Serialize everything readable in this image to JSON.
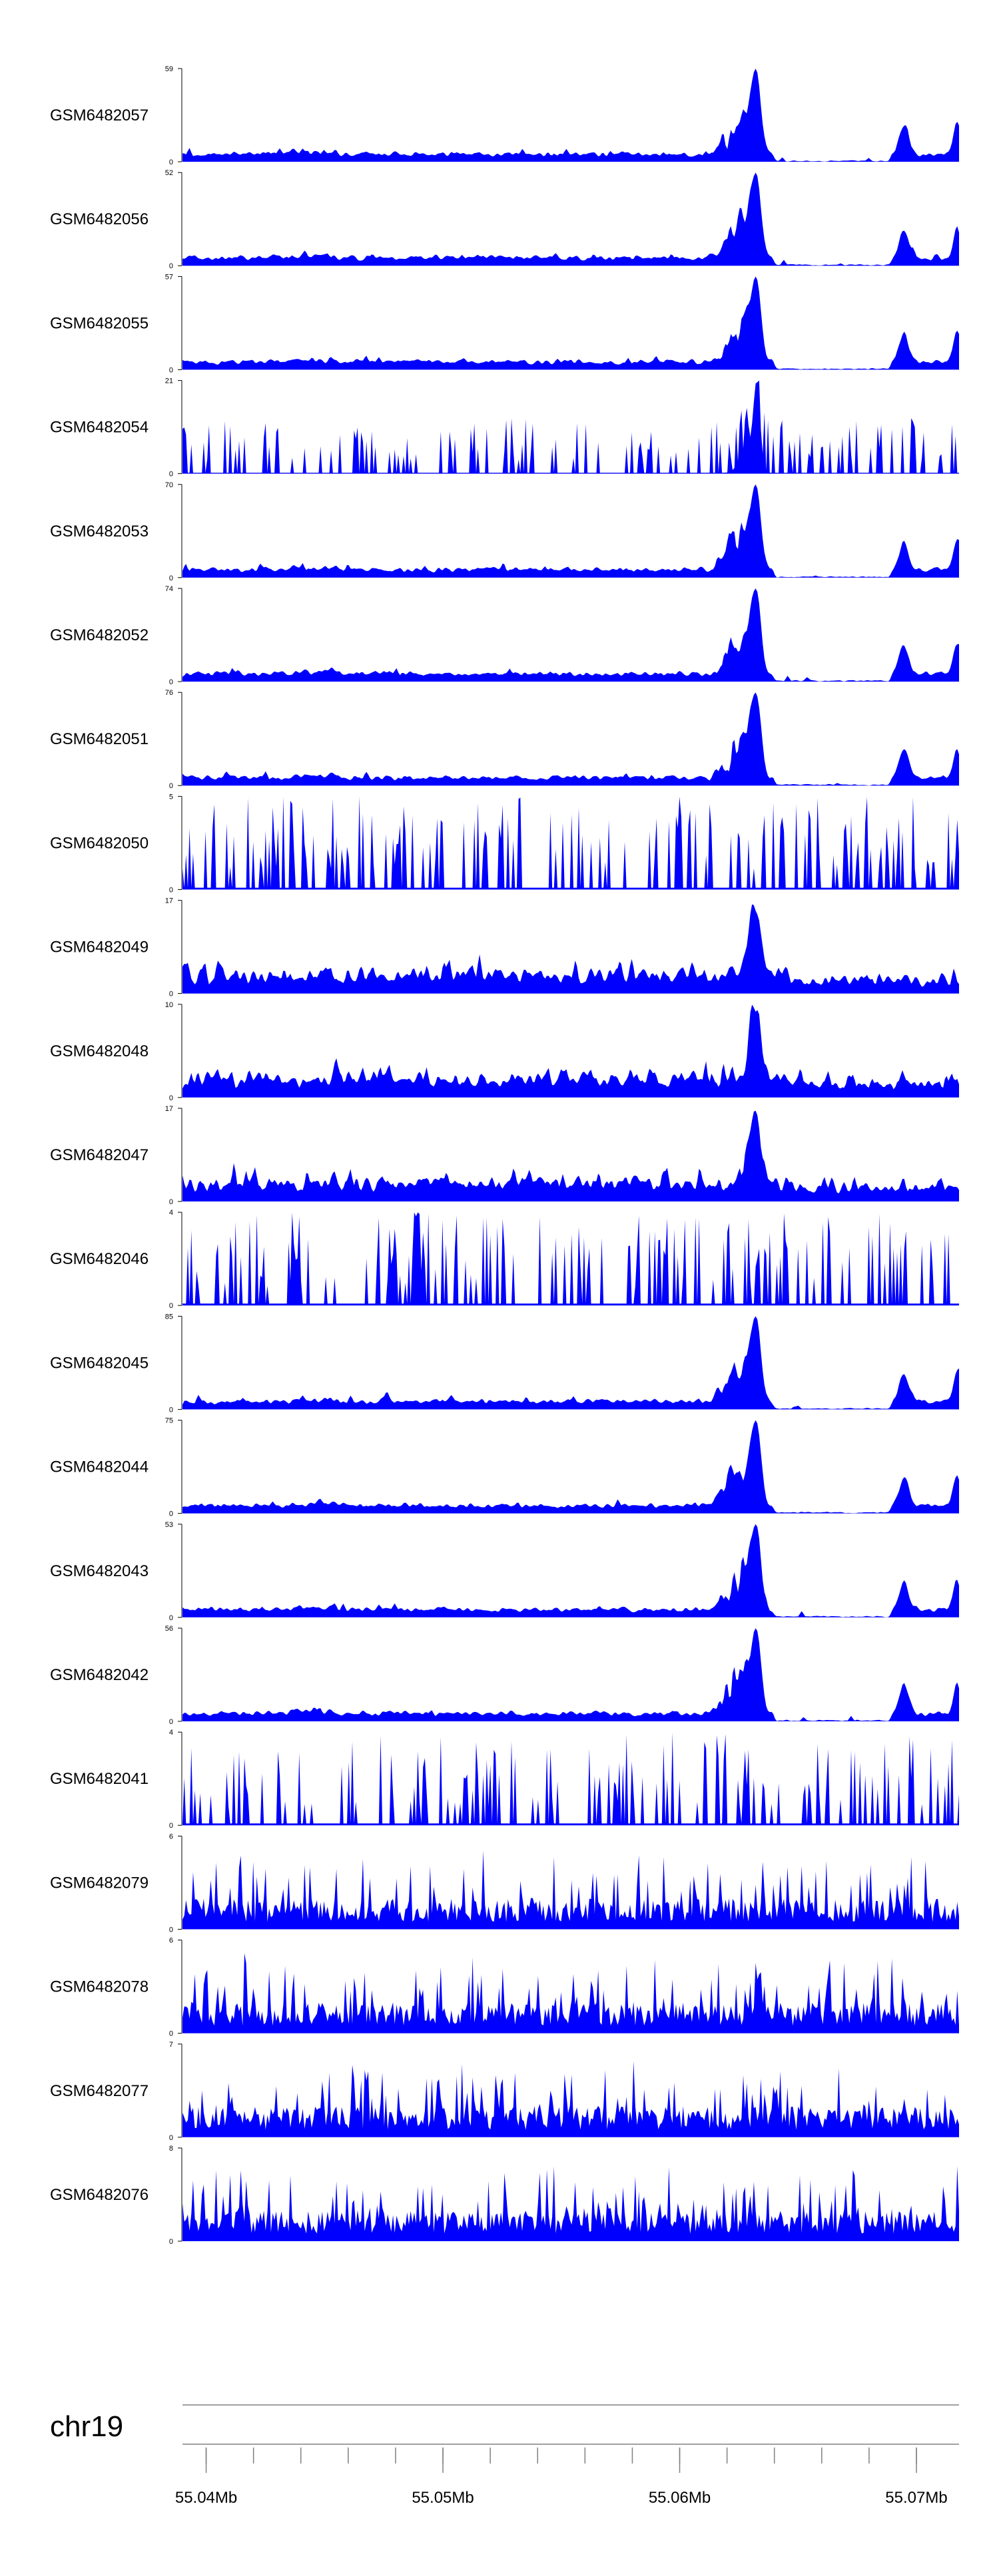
{
  "chart_data": {
    "type": "area",
    "fill_color": "#0000ff",
    "axis_color": "#000000",
    "chromosome": "chr19",
    "x_range_mb": [
      55.039,
      55.0718
    ],
    "x_ticks_major": [
      55.04,
      55.05,
      55.06,
      55.07
    ],
    "x_tick_labels": [
      "55.04Mb",
      "55.05Mb",
      "55.06Mb",
      "55.07Mb"
    ],
    "x_minor_step_mb": 0.002,
    "tracks": [
      {
        "label": "GSM6482057",
        "ymax": 59,
        "ymax_label": "59",
        "ymin_label": "0",
        "profile": "peaked"
      },
      {
        "label": "GSM6482056",
        "ymax": 52,
        "ymax_label": "52",
        "ymin_label": "0",
        "profile": "peaked"
      },
      {
        "label": "GSM6482055",
        "ymax": 57,
        "ymax_label": "57",
        "ymin_label": "0",
        "profile": "peaked"
      },
      {
        "label": "GSM6482054",
        "ymax": 21,
        "ymax_label": "21",
        "ymin_label": "0",
        "profile": "sparse"
      },
      {
        "label": "GSM6482053",
        "ymax": 70,
        "ymax_label": "70",
        "ymin_label": "0",
        "profile": "peaked"
      },
      {
        "label": "GSM6482052",
        "ymax": 74,
        "ymax_label": "74",
        "ymin_label": "0",
        "profile": "peaked"
      },
      {
        "label": "GSM6482051",
        "ymax": 76,
        "ymax_label": "76",
        "ymin_label": "0",
        "profile": "peaked"
      },
      {
        "label": "GSM6482050",
        "ymax": 5,
        "ymax_label": "5",
        "ymin_label": "0",
        "profile": "noisy"
      },
      {
        "label": "GSM6482049",
        "ymax": 17,
        "ymax_label": "17",
        "ymin_label": "0",
        "profile": "medium"
      },
      {
        "label": "GSM6482048",
        "ymax": 10,
        "ymax_label": "10",
        "ymin_label": "0",
        "profile": "medium"
      },
      {
        "label": "GSM6482047",
        "ymax": 17,
        "ymax_label": "17",
        "ymin_label": "0",
        "profile": "medium"
      },
      {
        "label": "GSM6482046",
        "ymax": 4,
        "ymax_label": "4",
        "ymin_label": "0",
        "profile": "noisy"
      },
      {
        "label": "GSM6482045",
        "ymax": 85,
        "ymax_label": "85",
        "ymin_label": "0",
        "profile": "peaked"
      },
      {
        "label": "GSM6482044",
        "ymax": 75,
        "ymax_label": "75",
        "ymin_label": "0",
        "profile": "peaked"
      },
      {
        "label": "GSM6482043",
        "ymax": 53,
        "ymax_label": "53",
        "ymin_label": "0",
        "profile": "peaked"
      },
      {
        "label": "GSM6482042",
        "ymax": 56,
        "ymax_label": "56",
        "ymin_label": "0",
        "profile": "peaked"
      },
      {
        "label": "GSM6482041",
        "ymax": 4,
        "ymax_label": "4",
        "ymin_label": "0",
        "profile": "noisy"
      },
      {
        "label": "GSM6482079",
        "ymax": 6,
        "ymax_label": "6",
        "ymin_label": "0",
        "profile": "broad"
      },
      {
        "label": "GSM6482078",
        "ymax": 6,
        "ymax_label": "6",
        "ymin_label": "0",
        "profile": "broad"
      },
      {
        "label": "GSM6482077",
        "ymax": 7,
        "ymax_label": "7",
        "ymin_label": "0",
        "profile": "broad"
      },
      {
        "label": "GSM6482076",
        "ymax": 8,
        "ymax_label": "8",
        "ymin_label": "0",
        "profile": "broad"
      }
    ]
  }
}
